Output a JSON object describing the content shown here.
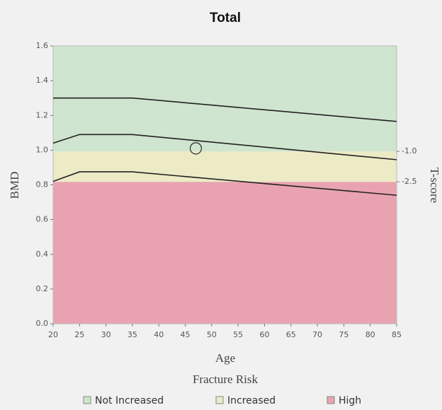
{
  "chart_data": {
    "type": "line",
    "title": "Total",
    "xlabel": "Age",
    "ylabel": "BMD",
    "y2label": "T-score",
    "x": [
      20,
      25,
      35,
      85
    ],
    "series": [
      {
        "color": "#222222",
        "values": [
          1.3,
          1.3,
          1.3,
          1.165
        ]
      },
      {
        "color": "#222222",
        "values": [
          1.04,
          1.09,
          1.09,
          0.945
        ]
      },
      {
        "color": "#222222",
        "values": [
          0.82,
          0.875,
          0.875,
          0.74
        ]
      }
    ],
    "points": [
      {
        "x": 47,
        "y": 1.01
      }
    ],
    "xlim": [
      20,
      85
    ],
    "xticks": [
      20,
      25,
      30,
      35,
      40,
      45,
      50,
      55,
      60,
      65,
      70,
      75,
      80,
      85
    ],
    "ylim": [
      0,
      1.6
    ],
    "yticks": [
      {
        "value": 0,
        "label": "0.0"
      },
      0.2,
      0.4,
      0.6,
      0.8,
      {
        "value": 1,
        "label": "1.0"
      },
      1.2,
      1.4,
      1.6
    ],
    "y2lim": [
      -9.5,
      4.2
    ],
    "y2ticks": [
      -2.5,
      {
        "value": -1,
        "label": "-1.0"
      }
    ],
    "legend_title": "Fracture Risk",
    "legend": [
      {
        "name": "Not Increased",
        "color": "#cfe5cf"
      },
      {
        "name": "Increased",
        "color": "#ecebc6"
      },
      {
        "name": "High",
        "color": "#e9a3b0"
      }
    ]
  }
}
